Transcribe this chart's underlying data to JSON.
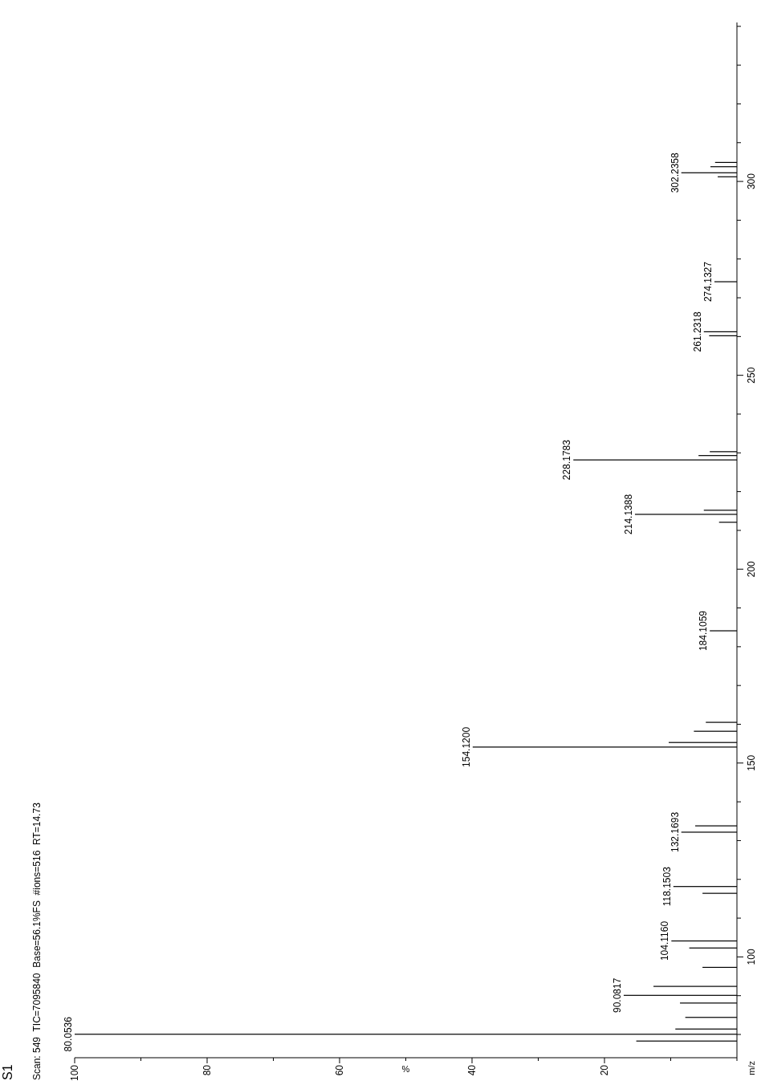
{
  "chart_data": {
    "type": "bar",
    "orientation": "horizontal",
    "title": "S1",
    "subtitle": "Scan: 549  TIC=7095840  Base=56.1%FS  #ions=516  RT=14.73",
    "xlabel": "%",
    "ylabel": "m/z",
    "x": [
      78.3,
      80.0536,
      81.4,
      84.4,
      88.1,
      90.0817,
      92.4,
      97.3,
      102.3,
      104.116,
      116.4,
      118.1503,
      132.1693,
      133.8,
      154.12,
      155.3,
      158.2,
      160.5,
      184.1059,
      212.1,
      214.1388,
      215.2,
      228.1783,
      229.3,
      230.3,
      260.2,
      261.2318,
      274.1327,
      301.2,
      302.2358,
      303.8,
      304.9
    ],
    "values": [
      15.2,
      100,
      9.3,
      7.8,
      8.6,
      17.1,
      12.6,
      5.2,
      7.2,
      9.9,
      5.2,
      9.6,
      8.4,
      6.3,
      39.9,
      10.3,
      6.5,
      4.7,
      4.1,
      2.7,
      15.4,
      5.0,
      24.7,
      5.8,
      4.1,
      4.2,
      5.0,
      3.4,
      2.9,
      8.4,
      4.0,
      3.3
    ],
    "color": "#000000",
    "xlim": [
      100,
      0
    ],
    "xticks": [
      100,
      {
        "value": 90,
        "label": null
      },
      80,
      {
        "value": 70,
        "label": null
      },
      60,
      {
        "value": 50,
        "label": null
      },
      40,
      {
        "value": 30,
        "label": null
      },
      20,
      {
        "value": 10,
        "label": null
      },
      {
        "value": 0,
        "label": null
      }
    ],
    "ylim": [
      74,
      341
    ],
    "yticks": [
      {
        "value": 80,
        "label": null
      },
      {
        "value": 90,
        "label": null
      },
      100,
      {
        "value": 110,
        "label": null
      },
      {
        "value": 120,
        "label": null
      },
      {
        "value": 130,
        "label": null
      },
      {
        "value": 140,
        "label": null
      },
      150,
      {
        "value": 160,
        "label": null
      },
      {
        "value": 170,
        "label": null
      },
      {
        "value": 180,
        "label": null
      },
      {
        "value": 190,
        "label": null
      },
      200,
      {
        "value": 210,
        "label": null
      },
      {
        "value": 220,
        "label": null
      },
      {
        "value": 230,
        "label": null
      },
      {
        "value": 240,
        "label": null
      },
      250,
      {
        "value": 260,
        "label": null
      },
      {
        "value": 270,
        "label": null
      },
      {
        "value": 280,
        "label": null
      },
      {
        "value": 290,
        "label": null
      },
      300,
      {
        "value": 310,
        "label": null
      },
      {
        "value": 320,
        "label": null
      },
      {
        "value": 330,
        "label": null
      },
      {
        "value": 340,
        "label": null
      }
    ],
    "annotations": [
      {
        "text": "80.0536",
        "x": 100,
        "y": 80.0536
      },
      {
        "text": "90.0817",
        "x": 17.1,
        "y": 90.0817
      },
      {
        "text": "104.1160",
        "x": 9.9,
        "y": 104.116
      },
      {
        "text": "118.1503",
        "x": 9.6,
        "y": 118.1503
      },
      {
        "text": "132.1693",
        "x": 8.4,
        "y": 132.1693
      },
      {
        "text": "154.1200",
        "x": 39.9,
        "y": 154.12
      },
      {
        "text": "184.1059",
        "x": 4.1,
        "y": 184.1059
      },
      {
        "text": "214.1388",
        "x": 15.4,
        "y": 214.1388
      },
      {
        "text": "228.1783",
        "x": 24.7,
        "y": 228.1783
      },
      {
        "text": "261.2318",
        "x": 5.0,
        "y": 261.2318
      },
      {
        "text": "274.1327",
        "x": 3.4,
        "y": 274.1327
      },
      {
        "text": "302.2358",
        "x": 8.4,
        "y": 302.2358
      }
    ],
    "grid": false
  }
}
